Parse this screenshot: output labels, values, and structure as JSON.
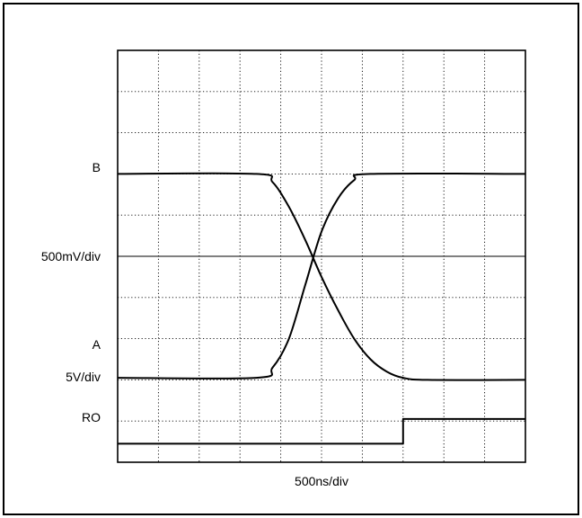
{
  "chart_data": {
    "type": "line",
    "title": "",
    "xlabel": "500ns/div",
    "ylabel": "",
    "grid": true,
    "grid_divisions": {
      "x": 10,
      "y": 10
    },
    "x_unit": "div",
    "y_unit": "div",
    "xlim": [
      0,
      10
    ],
    "ylim": [
      0,
      10
    ],
    "trace_labels": [
      "B",
      "A",
      "RO"
    ],
    "scale_labels": [
      "500mV/div",
      "5V/div"
    ],
    "series": [
      {
        "name": "B",
        "values": [
          [
            0,
            7.0
          ],
          [
            3.4,
            7.0
          ],
          [
            3.8,
            6.8
          ],
          [
            4.2,
            6.2
          ],
          [
            4.6,
            5.4
          ],
          [
            5.0,
            4.5
          ],
          [
            5.4,
            3.7
          ],
          [
            5.8,
            3.0
          ],
          [
            6.2,
            2.5
          ],
          [
            6.6,
            2.2
          ],
          [
            7.0,
            2.05
          ],
          [
            7.6,
            2.0
          ],
          [
            10,
            2.0
          ]
        ]
      },
      {
        "name": "A",
        "values": [
          [
            0,
            2.05
          ],
          [
            3.4,
            2.05
          ],
          [
            3.8,
            2.3
          ],
          [
            4.2,
            3.0
          ],
          [
            4.6,
            4.3
          ],
          [
            5.0,
            5.6
          ],
          [
            5.4,
            6.4
          ],
          [
            5.8,
            6.85
          ],
          [
            6.2,
            7.0
          ],
          [
            10,
            7.0
          ]
        ]
      },
      {
        "name": "RO",
        "values": [
          [
            0,
            0.45
          ],
          [
            7.0,
            0.45
          ],
          [
            7.0,
            1.05
          ],
          [
            10,
            1.05
          ]
        ]
      }
    ],
    "reference_lines": [
      {
        "y": 5.0
      }
    ]
  }
}
